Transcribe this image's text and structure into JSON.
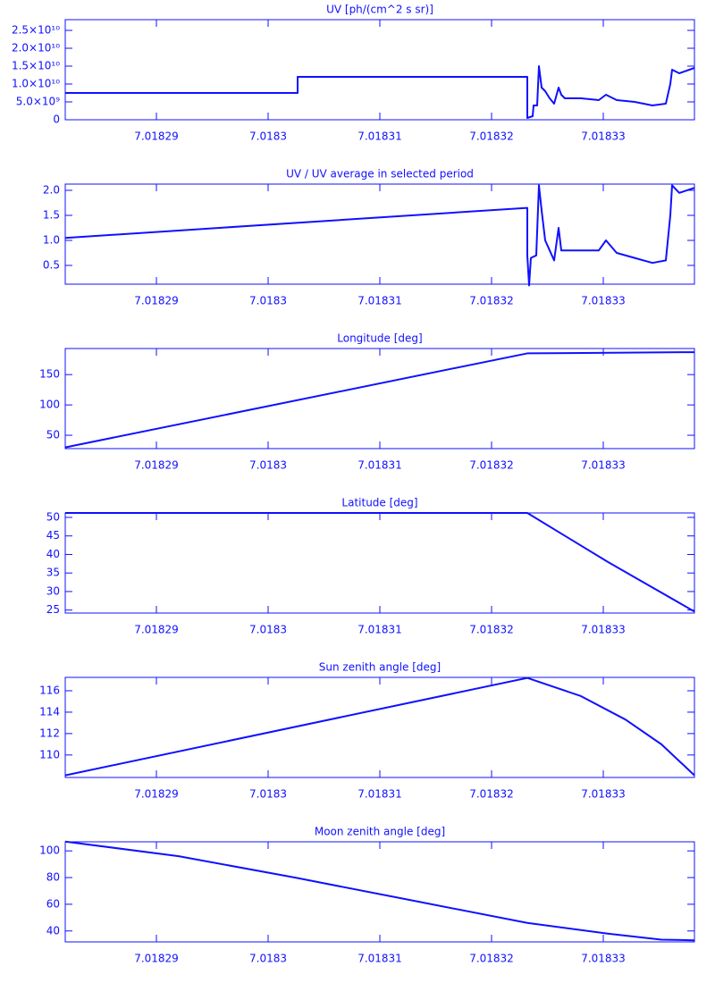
{
  "chart_data": [
    {
      "type": "line",
      "title": "UV [ph/(cm^2 s sr)]",
      "color": "#1010ff",
      "x": [
        7.01828184,
        7.01830264,
        7.01830264,
        7.0183232,
        7.0183232,
        7.01832368,
        7.01832376,
        7.01832408,
        7.01832424,
        7.01832448,
        7.0183248,
        7.0183252,
        7.0183256,
        7.018326,
        7.01832624,
        7.01832656,
        7.018328,
        7.0183296,
        7.01833024,
        7.0183312,
        7.0183328,
        7.0183344,
        7.0183356,
        7.018336,
        7.01833616,
        7.0183368,
        7.01833816
      ],
      "values": [
        7500000000,
        7500000000,
        12000000000,
        12000000000,
        500000000,
        1000000000,
        4000000000,
        4000000000,
        15000000000,
        9000000000,
        8000000000,
        6000000000,
        4500000000,
        9000000000,
        7000000000,
        6000000000,
        6000000000,
        5500000000,
        7000000000,
        5500000000,
        5000000000,
        4000000000,
        4500000000,
        10000000000,
        14000000000,
        13000000000,
        14500000000
      ],
      "xlim": [
        7.01828184,
        7.01833816
      ],
      "xticks": [
        7.01829,
        7.0183,
        7.01831,
        7.01832,
        7.01833
      ],
      "ylim": [
        0,
        28000000000
      ],
      "yticks": [
        0,
        {
          "value": 5000000000,
          "label": "5.0×10⁹"
        },
        {
          "value": 10000000000,
          "label": "1.0×10¹⁰"
        },
        {
          "value": 15000000000,
          "label": "1.5×10¹⁰"
        },
        {
          "value": 20000000000,
          "label": "2.0×10¹⁰"
        },
        {
          "value": 25000000000,
          "label": "2.5×10¹⁰"
        }
      ]
    },
    {
      "type": "line",
      "title": "UV / UV average in selected period",
      "color": "#1010ff",
      "x": [
        7.01828184,
        7.0183232,
        7.0183232,
        7.01832336,
        7.01832352,
        7.018324,
        7.01832424,
        7.01832448,
        7.0183248,
        7.0183252,
        7.0183256,
        7.018326,
        7.01832624,
        7.018328,
        7.0183296,
        7.01833024,
        7.0183312,
        7.0183328,
        7.0183344,
        7.0183356,
        7.018336,
        7.01833616,
        7.0183368,
        7.01833816
      ],
      "values": [
        1.05,
        1.65,
        0.7,
        0.1,
        0.65,
        0.7,
        2.1,
        1.6,
        1.0,
        0.8,
        0.6,
        1.25,
        0.8,
        0.8,
        0.8,
        1.0,
        0.75,
        0.65,
        0.55,
        0.6,
        1.5,
        2.1,
        1.95,
        2.05
      ],
      "xlim": [
        7.01828184,
        7.01833816
      ],
      "xticks": [
        7.01829,
        7.0183,
        7.01831,
        7.01832,
        7.01833
      ],
      "ylim": [
        0.125,
        2.125
      ],
      "yticks": [
        0.5,
        {
          "value": 1,
          "label": "1.0"
        },
        1.5,
        {
          "value": 2,
          "label": "2.0"
        }
      ]
    },
    {
      "type": "line",
      "title": "Longitude [deg]",
      "color": "#1010ff",
      "x": [
        7.01828184,
        7.0183232,
        7.01833816
      ],
      "values": [
        30,
        185,
        187
      ],
      "xlim": [
        7.01828184,
        7.01833816
      ],
      "xticks": [
        7.01829,
        7.0183,
        7.01831,
        7.01832,
        7.01833
      ],
      "ylim": [
        28,
        193
      ],
      "yticks": [
        50,
        100,
        150
      ]
    },
    {
      "type": "line",
      "title": "Latitude [deg]",
      "color": "#1010ff",
      "x": [
        7.01828184,
        7.0183232,
        7.0183304,
        7.01833816
      ],
      "values": [
        51.2,
        51.2,
        38,
        24.6
      ],
      "xlim": [
        7.01828184,
        7.01833816
      ],
      "xticks": [
        7.01829,
        7.0183,
        7.01831,
        7.01832,
        7.01833
      ],
      "ylim": [
        24.2,
        51.2
      ],
      "yticks": [
        25,
        30,
        35,
        40,
        45,
        50
      ]
    },
    {
      "type": "line",
      "title": "Sun zenith angle [deg]",
      "color": "#1010ff",
      "x": [
        7.01828184,
        7.0183232,
        7.018328,
        7.018332,
        7.0183352,
        7.01833816
      ],
      "values": [
        108.1,
        117.2,
        115.5,
        113.3,
        111,
        108.1
      ],
      "xlim": [
        7.01828184,
        7.01833816
      ],
      "xticks": [
        7.01829,
        7.0183,
        7.01831,
        7.01832,
        7.01833
      ],
      "ylim": [
        107.9,
        117.25
      ],
      "yticks": [
        110,
        112,
        114,
        116
      ]
    },
    {
      "type": "line",
      "title": "Moon zenith angle [deg]",
      "color": "#1010ff",
      "x": [
        7.01828184,
        7.018292,
        7.0183024,
        7.0183128,
        7.0183232,
        7.0183304,
        7.0183352,
        7.01833816
      ],
      "values": [
        107,
        96,
        80,
        63,
        46,
        38,
        33.5,
        33
      ],
      "xlim": [
        7.01828184,
        7.01833816
      ],
      "xticks": [
        7.01829,
        7.0183,
        7.01831,
        7.01832,
        7.01833
      ],
      "ylim": [
        31.8,
        106.8
      ],
      "yticks": [
        40,
        60,
        80,
        100
      ]
    }
  ]
}
